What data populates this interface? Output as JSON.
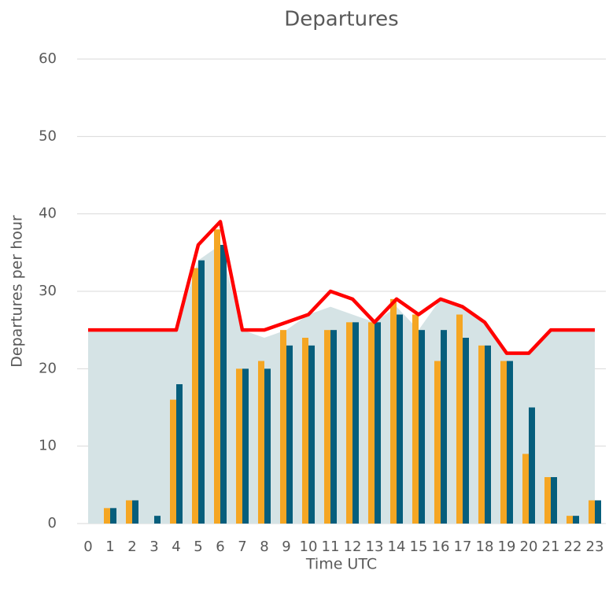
{
  "chart_data": {
    "type": "combo",
    "title": "Departures",
    "x_label": "Time UTC",
    "y_label": "Departures per hour",
    "categories": [
      "0",
      "1",
      "2",
      "3",
      "4",
      "5",
      "6",
      "7",
      "8",
      "9",
      "10",
      "11",
      "12",
      "13",
      "14",
      "15",
      "16",
      "17",
      "18",
      "19",
      "20",
      "21",
      "22",
      "23"
    ],
    "series": [
      {
        "type": "area",
        "color": "#d5e3e5",
        "values": [
          25,
          25,
          25,
          25,
          25,
          34,
          36,
          25,
          24,
          25,
          27,
          28,
          27,
          26,
          28,
          25,
          29,
          28,
          26,
          22,
          22,
          25,
          25,
          25
        ]
      },
      {
        "type": "bar",
        "color": "#f5a623",
        "values": [
          0,
          2,
          3,
          0,
          16,
          33,
          38,
          20,
          21,
          25,
          24,
          25,
          26,
          26,
          29,
          27,
          21,
          27,
          23,
          21,
          9,
          6,
          1,
          3
        ]
      },
      {
        "type": "bar",
        "color": "#065e7c",
        "values": [
          0,
          2,
          3,
          1,
          18,
          34,
          36,
          20,
          20,
          23,
          23,
          25,
          26,
          26,
          27,
          25,
          25,
          24,
          23,
          21,
          15,
          6,
          1,
          3
        ]
      },
      {
        "type": "line",
        "color": "#ff0000",
        "values": [
          25,
          25,
          25,
          25,
          25,
          36,
          39,
          25,
          25,
          26,
          27,
          30,
          29,
          26,
          29,
          27,
          29,
          28,
          26,
          22,
          22,
          25,
          25,
          25
        ]
      }
    ],
    "ylim": [
      0,
      60
    ],
    "yticks": [
      0,
      10,
      20,
      30,
      40,
      50,
      60
    ],
    "grid": true
  }
}
